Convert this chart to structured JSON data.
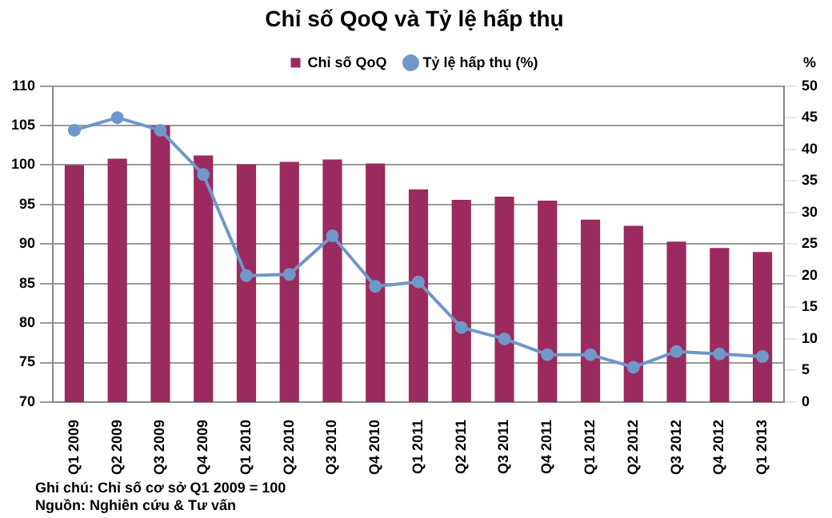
{
  "chart_data": {
    "type": "bar",
    "title": "Chỉ số QoQ và Tỷ lệ hấp thụ",
    "y2label": "%",
    "categories": [
      "Q1 2009",
      "Q2 2009",
      "Q3 2009",
      "Q4 2009",
      "Q1 2010",
      "Q2 2010",
      "Q3 2010",
      "Q4 2010",
      "Q1 2011",
      "Q2 2011",
      "Q3 2011",
      "Q4 2011",
      "Q1 2012",
      "Q2 2012",
      "Q3 2012",
      "Q4 2012",
      "Q1 2013"
    ],
    "series": [
      {
        "name": "Chỉ số QoQ",
        "color": "#9b2a5e",
        "values": [
          100,
          100.8,
          105,
          101.2,
          100.1,
          100.4,
          100.7,
          100.2,
          96.9,
          95.6,
          96,
          95.5,
          93.1,
          92.3,
          90.3,
          89.5,
          89
        ]
      },
      {
        "name": "Tỷ lệ hấp thụ (%)",
        "type": "line",
        "axis": "y2",
        "color": "#6f97c9",
        "marker": "circle",
        "values": [
          43,
          45,
          43,
          36,
          20,
          20.2,
          26.3,
          18.3,
          19,
          11.8,
          10,
          7.5,
          7.5,
          5.5,
          8,
          7.6,
          7.2
        ]
      }
    ],
    "ylim": [
      70,
      110
    ],
    "yticks": [
      70,
      75,
      80,
      85,
      90,
      95,
      100,
      105,
      110
    ],
    "y2lim": [
      0,
      50
    ],
    "y2ticks": [
      0,
      5,
      10,
      15,
      20,
      25,
      30,
      35,
      40,
      45,
      50
    ],
    "grid": "y",
    "legend": "top",
    "annotations": [
      "Ghi chú: Chỉ số cơ sở Q1 2009 = 100",
      "Nguồn: Nghiên cứu & Tư vấn"
    ]
  }
}
